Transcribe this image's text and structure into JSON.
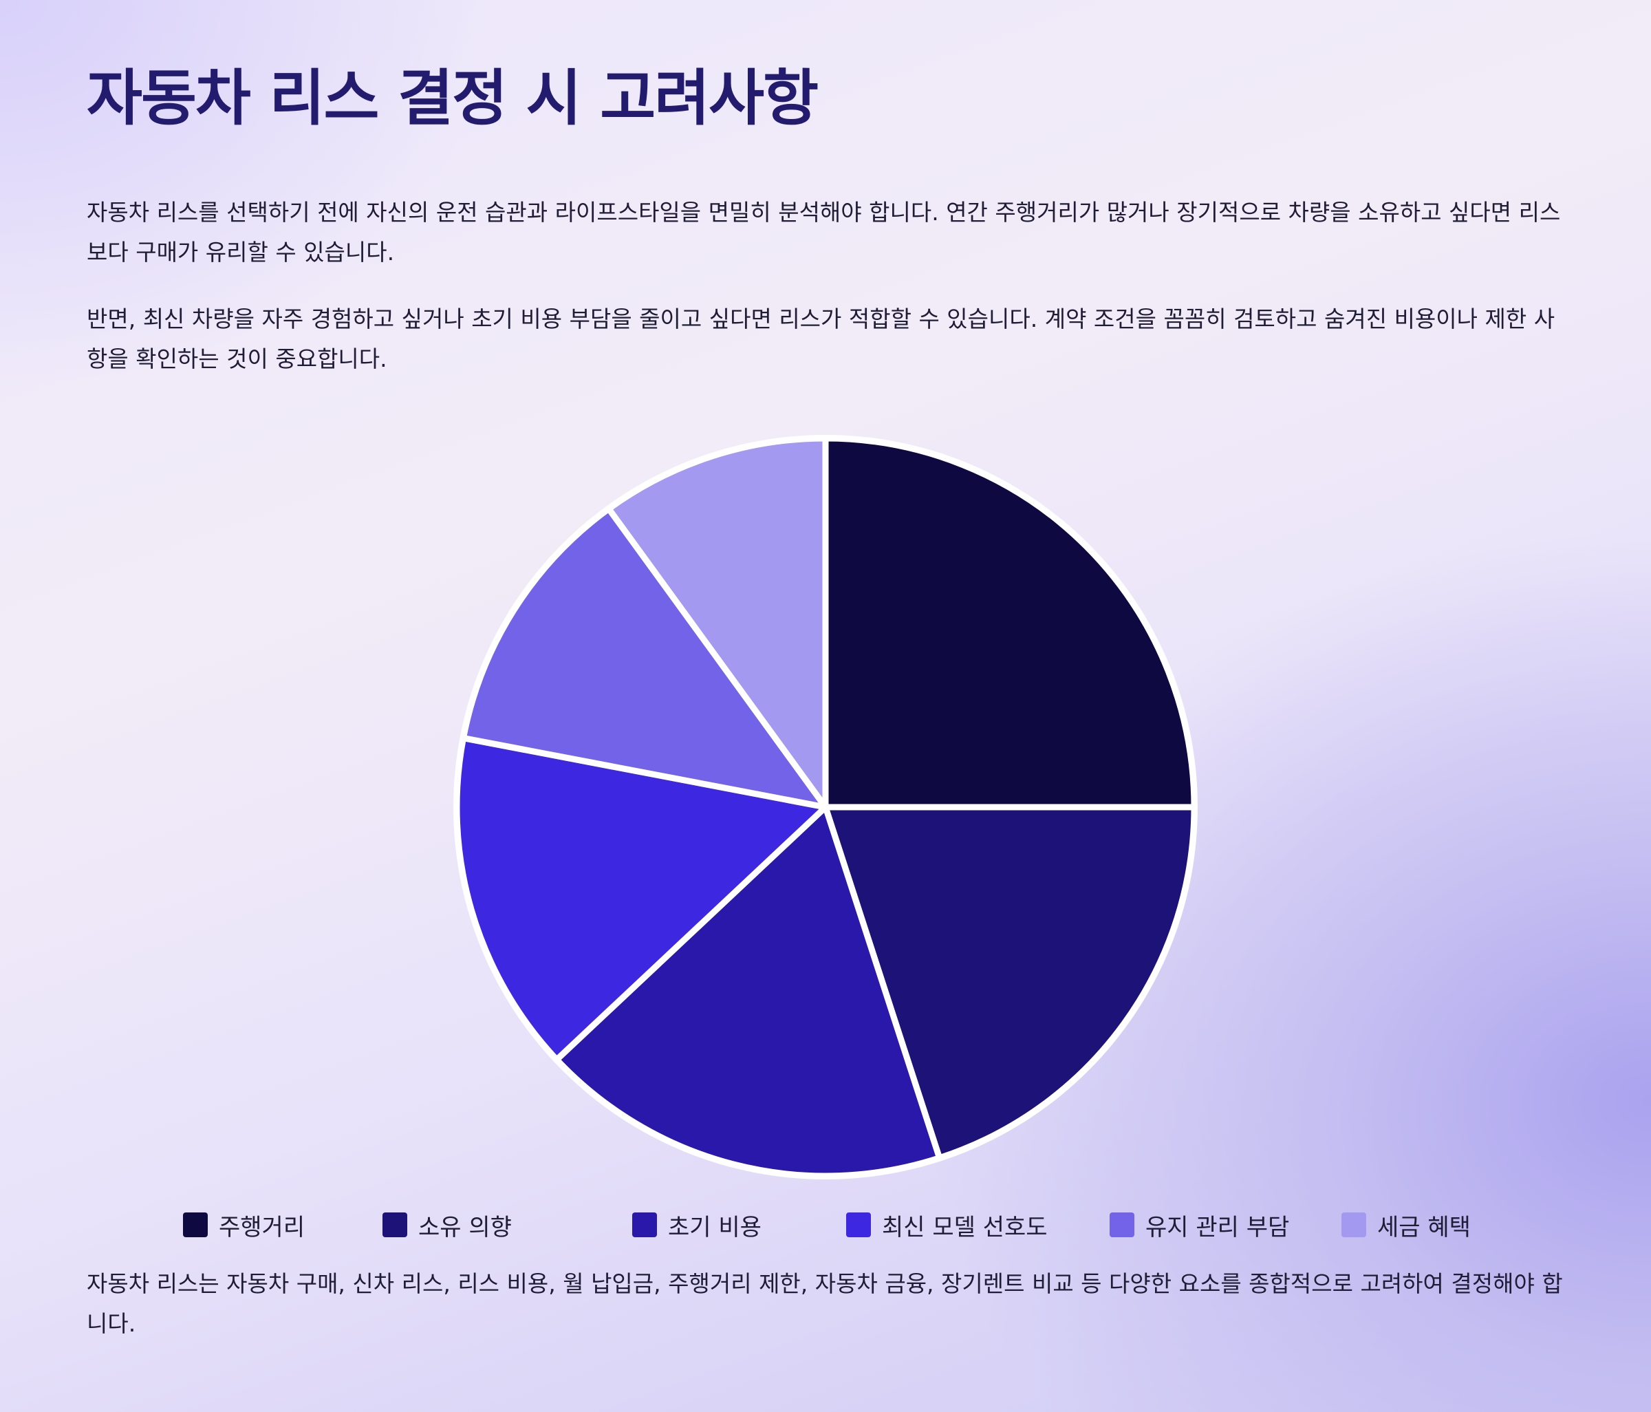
{
  "title": "자동차 리스 결정 시 고려사항",
  "paragraphs": {
    "intro": "자동차 리스를 선택하기 전에 자신의 운전 습관과 라이프스타일을 면밀히 분석해야 합니다. 연간 주행거리가 많거나 장기적으로 차량을 소유하고 싶다면 리스보다 구매가 유리할 수 있습니다.",
    "second": "반면, 최신 차량을 자주 경험하고 싶거나 초기 비용 부담을 줄이고 싶다면 리스가 적합할 수 있습니다. 계약 조건을 꼼꼼히 검토하고 숨겨진 비용이나 제한 사항을 확인하는 것이 중요합니다.",
    "footer": "자동차 리스는 자동차 구매, 신차 리스, 리스 비용, 월 납입금, 주행거리 제한, 자동차 금융, 장기렌트 비교 등 다양한 요소를 종합적으로 고려하여 결정해야 합니다."
  },
  "chart_data": {
    "type": "pie",
    "categories": [
      "주행거리",
      "소유 의향",
      "초기 비용",
      "최신 모델 선호도",
      "유지 관리 부담",
      "세금 혜택"
    ],
    "values": [
      25,
      20,
      18,
      15,
      12,
      10
    ],
    "colors": [
      "#0f0942",
      "#1c1278",
      "#2a18ab",
      "#3d27e0",
      "#7263e8",
      "#a399f0"
    ],
    "slice_border_color": "#ffffff",
    "start_angle_deg": 0,
    "direction": "clockwise",
    "legend_position": "bottom"
  }
}
